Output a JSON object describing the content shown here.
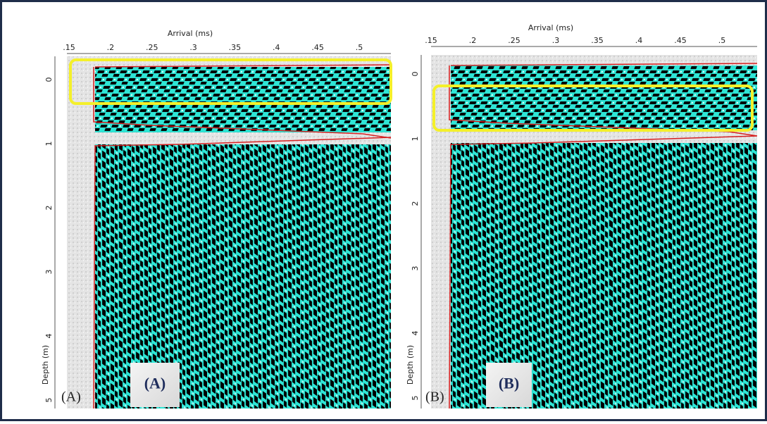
{
  "panels": [
    {
      "x_axis_label": "Arrival (ms)",
      "y_axis_label": "Depth (m)",
      "x_ticks": [
        ".15",
        ".2",
        ".25",
        ".3",
        ".35",
        ".4",
        ".45",
        ".5"
      ],
      "y_ticks": [
        "0",
        "1",
        "2",
        "3",
        "4",
        "5"
      ],
      "corner_label": "(A)",
      "badge": "(A)"
    },
    {
      "x_axis_label": "Arrival (ms)",
      "y_axis_label": "Depth (m)",
      "x_ticks": [
        ".15",
        ".2",
        ".25",
        ".3",
        ".35",
        ".4",
        ".45",
        ".5"
      ],
      "y_ticks": [
        "0",
        "1",
        "2",
        "3",
        "4",
        "5"
      ],
      "corner_label": "(B)",
      "badge": "(B)"
    }
  ]
}
